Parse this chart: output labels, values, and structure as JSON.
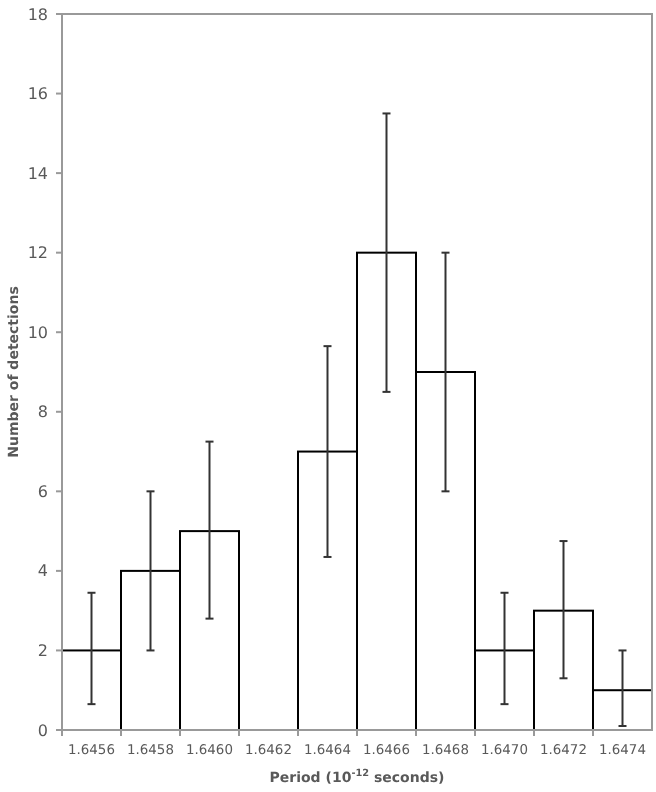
{
  "chart_data": {
    "type": "bar",
    "xlabel": "Period (10$^{-12}$ seconds)",
    "ylabel": "Number of detections",
    "categories": [
      "1.6456",
      "1.6458",
      "1.6460",
      "1.6462",
      "1.6464",
      "1.6466",
      "1.6468",
      "1.6470",
      "1.6472",
      "1.6474"
    ],
    "values": [
      2,
      4,
      5,
      0,
      7,
      12,
      9,
      2,
      3,
      1
    ],
    "errors": [
      [
        0.65,
        3.45
      ],
      [
        2,
        6
      ],
      [
        2.8,
        7.25
      ],
      null,
      [
        4.35,
        9.65
      ],
      [
        8.5,
        15.5
      ],
      [
        6,
        12
      ],
      [
        0.65,
        3.45
      ],
      [
        1.3,
        4.75
      ],
      [
        0.1,
        2
      ]
    ],
    "color": "#ffffff",
    "ylim": [
      0,
      18
    ],
    "yticks": [
      0,
      2,
      4,
      6,
      8,
      10,
      12,
      14,
      16,
      18
    ],
    "grid": false
  }
}
